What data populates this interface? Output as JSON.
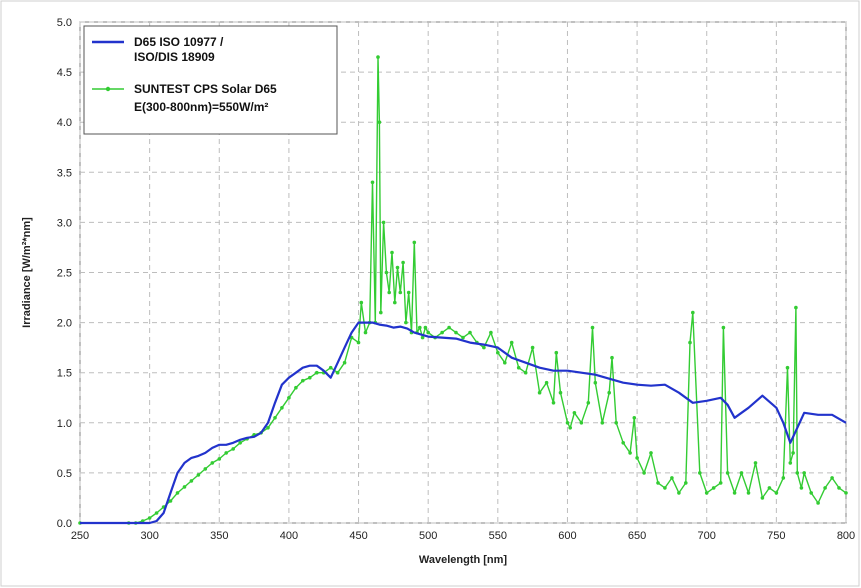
{
  "chart_data": {
    "type": "line",
    "xlabel": "Wavelength [nm]",
    "ylabel": "Irradiance [W/m²*nm]",
    "xlim": [
      250,
      800
    ],
    "ylim": [
      0,
      5
    ],
    "x_ticks": [
      "250",
      "300",
      "350",
      "400",
      "450",
      "500",
      "550",
      "600",
      "650",
      "700",
      "750",
      "800"
    ],
    "y_ticks": [
      "0.0",
      "0.5",
      "1.0",
      "1.5",
      "2.0",
      "2.5",
      "3.0",
      "3.5",
      "4.0",
      "4.5",
      "5.0"
    ],
    "grid": true,
    "legend_position": "top-left",
    "series": [
      {
        "name": "D65 ISO 10977 / ISO/DIS 18909",
        "legend_lines": [
          "D65 ISO 10977 /",
          "ISO/DIS 18909"
        ],
        "color": "#2233cc",
        "marker": "none",
        "x": [
          250,
          290,
          300,
          305,
          310,
          315,
          320,
          325,
          330,
          335,
          340,
          345,
          350,
          355,
          360,
          365,
          370,
          375,
          380,
          385,
          390,
          395,
          400,
          405,
          410,
          415,
          420,
          425,
          430,
          435,
          440,
          445,
          450,
          455,
          460,
          465,
          470,
          475,
          480,
          485,
          490,
          495,
          500,
          510,
          520,
          530,
          540,
          550,
          560,
          570,
          580,
          590,
          600,
          610,
          620,
          630,
          640,
          650,
          660,
          670,
          680,
          690,
          700,
          710,
          715,
          720,
          725,
          730,
          740,
          750,
          755,
          760,
          765,
          770,
          780,
          790,
          800
        ],
        "y": [
          0,
          0,
          0,
          0.02,
          0.1,
          0.3,
          0.5,
          0.6,
          0.65,
          0.67,
          0.7,
          0.75,
          0.78,
          0.78,
          0.8,
          0.83,
          0.85,
          0.86,
          0.9,
          1.0,
          1.2,
          1.38,
          1.45,
          1.5,
          1.55,
          1.57,
          1.57,
          1.52,
          1.45,
          1.6,
          1.75,
          1.9,
          2.0,
          2.0,
          2.0,
          1.98,
          1.97,
          1.95,
          1.96,
          1.94,
          1.9,
          1.88,
          1.86,
          1.85,
          1.84,
          1.8,
          1.78,
          1.75,
          1.65,
          1.6,
          1.55,
          1.52,
          1.52,
          1.5,
          1.48,
          1.44,
          1.4,
          1.38,
          1.37,
          1.38,
          1.3,
          1.2,
          1.22,
          1.25,
          1.18,
          1.05,
          1.1,
          1.15,
          1.27,
          1.15,
          1.0,
          0.8,
          0.95,
          1.1,
          1.08,
          1.08,
          1.0
        ]
      },
      {
        "name": "SUNTEST CPS Solar D65 E(300-800nm)=550W/m²",
        "legend_lines": [
          "SUNTEST CPS Solar D65",
          "E(300-800nm)=550W/m²"
        ],
        "color": "#33cc33",
        "marker": "dot",
        "x": [
          250,
          285,
          290,
          295,
          300,
          305,
          310,
          315,
          320,
          325,
          330,
          335,
          340,
          345,
          350,
          355,
          360,
          365,
          370,
          375,
          380,
          385,
          390,
          395,
          400,
          405,
          410,
          415,
          420,
          425,
          430,
          435,
          440,
          445,
          450,
          452,
          455,
          458,
          460,
          462,
          464,
          465,
          466,
          468,
          470,
          472,
          474,
          476,
          478,
          480,
          482,
          484,
          486,
          488,
          490,
          492,
          494,
          496,
          498,
          500,
          505,
          510,
          515,
          520,
          525,
          530,
          535,
          540,
          545,
          550,
          555,
          560,
          565,
          570,
          575,
          580,
          585,
          590,
          592,
          595,
          600,
          602,
          605,
          610,
          615,
          618,
          620,
          625,
          630,
          632,
          635,
          640,
          645,
          648,
          650,
          655,
          660,
          665,
          670,
          675,
          680,
          685,
          688,
          690,
          695,
          700,
          705,
          710,
          712,
          715,
          720,
          725,
          730,
          735,
          740,
          745,
          750,
          755,
          758,
          760,
          762,
          764,
          765,
          768,
          770,
          775,
          780,
          785,
          790,
          795,
          800
        ],
        "y": [
          0,
          0,
          0,
          0.02,
          0.05,
          0.1,
          0.16,
          0.22,
          0.3,
          0.36,
          0.42,
          0.48,
          0.54,
          0.6,
          0.64,
          0.7,
          0.74,
          0.8,
          0.84,
          0.88,
          0.9,
          0.95,
          1.05,
          1.15,
          1.25,
          1.35,
          1.42,
          1.45,
          1.5,
          1.5,
          1.55,
          1.5,
          1.6,
          1.85,
          1.8,
          2.2,
          1.9,
          2.0,
          3.4,
          2.0,
          4.65,
          4.0,
          2.1,
          3.0,
          2.5,
          2.3,
          2.7,
          2.2,
          2.55,
          2.3,
          2.6,
          2.0,
          2.3,
          1.9,
          2.8,
          1.9,
          1.95,
          1.85,
          1.95,
          1.9,
          1.85,
          1.9,
          1.95,
          1.9,
          1.85,
          1.9,
          1.8,
          1.75,
          1.9,
          1.7,
          1.6,
          1.8,
          1.55,
          1.5,
          1.75,
          1.3,
          1.4,
          1.2,
          1.7,
          1.3,
          1.0,
          0.95,
          1.1,
          1.0,
          1.2,
          1.95,
          1.4,
          1.0,
          1.3,
          1.65,
          1.0,
          0.8,
          0.7,
          1.05,
          0.65,
          0.5,
          0.7,
          0.4,
          0.35,
          0.45,
          0.3,
          0.4,
          1.8,
          2.1,
          0.5,
          0.3,
          0.35,
          0.4,
          1.95,
          0.5,
          0.3,
          0.5,
          0.3,
          0.6,
          0.25,
          0.35,
          0.3,
          0.45,
          1.55,
          0.6,
          0.7,
          2.15,
          0.5,
          0.35,
          0.5,
          0.3,
          0.2,
          0.35,
          0.45,
          0.35,
          0.3
        ]
      }
    ]
  }
}
